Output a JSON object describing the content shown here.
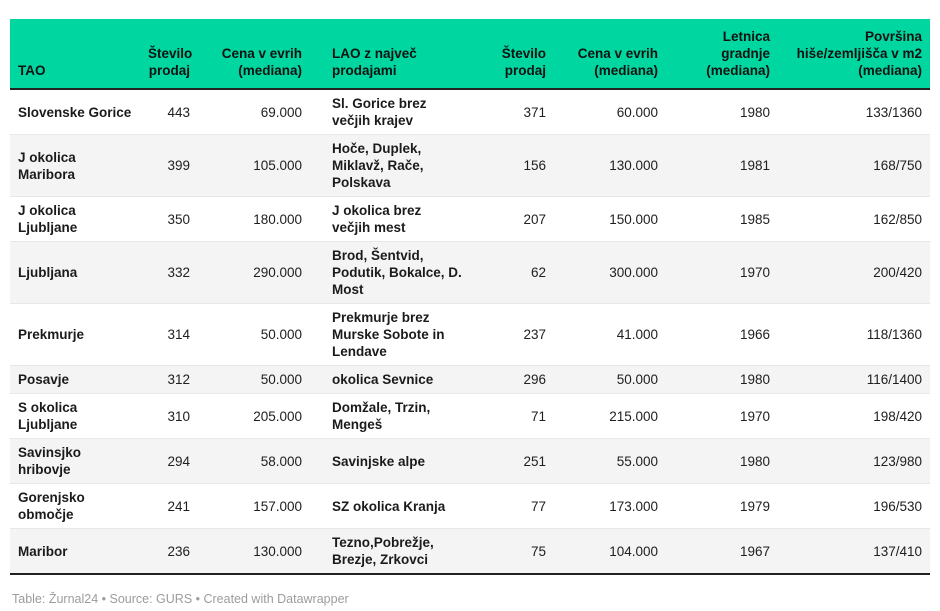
{
  "chart_data": {
    "type": "table",
    "title": "",
    "columns": [
      "TAO",
      "Število prodaj",
      "Cena v evrih (mediana)",
      "LAO z največ prodajami",
      "Število prodaj",
      "Cena v evrih (mediana)",
      "Letnica gradnje (mediana)",
      "Površina hiše/zemljišča v m2 (mediana)"
    ],
    "column_align": [
      "left",
      "right",
      "right",
      "left",
      "right",
      "right",
      "right",
      "right"
    ],
    "bold_columns": [
      0,
      3
    ],
    "rows": [
      [
        "Slovenske Gorice",
        "443",
        "69.000",
        "Sl. Gorice brez večjih krajev",
        "371",
        "60.000",
        "1980",
        "133/1360"
      ],
      [
        "J okolica Maribora",
        "399",
        "105.000",
        "Hoče, Duplek, Miklavž, Rače, Polskava",
        "156",
        "130.000",
        "1981",
        "168/750"
      ],
      [
        "J okolica Ljubljane",
        "350",
        "180.000",
        "J okolica brez večjih mest",
        "207",
        "150.000",
        "1985",
        "162/850"
      ],
      [
        "Ljubljana",
        "332",
        "290.000",
        "Brod, Šentvid, Podutik, Bokalce, D. Most",
        "62",
        "300.000",
        "1970",
        "200/420"
      ],
      [
        "Prekmurje",
        "314",
        "50.000",
        "Prekmurje brez Murske Sobote in Lendave",
        "237",
        "41.000",
        "1966",
        "118/1360"
      ],
      [
        "Posavje",
        "312",
        "50.000",
        "okolica Sevnice",
        "296",
        "50.000",
        "1980",
        "116/1400"
      ],
      [
        "S okolica Ljubljane",
        "310",
        "205.000",
        "Domžale, Trzin, Mengeš",
        "71",
        "215.000",
        "1970",
        "198/420"
      ],
      [
        "Savinsjko hribovje",
        "294",
        "58.000",
        "Savinjske alpe",
        "251",
        "55.000",
        "1980",
        "123/980"
      ],
      [
        "Gorenjsko območje",
        "241",
        "157.000",
        "SZ okolica Kranja",
        "77",
        "173.000",
        "1979",
        "196/530"
      ],
      [
        "Maribor",
        "236",
        "130.000",
        "Tezno,Pobrežje, Brezje, Zrkovci",
        "75",
        "104.000",
        "1967",
        "137/410"
      ]
    ],
    "layout_hints": {
      "zebra_striping": true,
      "header_vertical_align": "bottom",
      "numeric_columns_right_aligned": true
    }
  },
  "colors": {
    "header_bg": "#00d7a0",
    "header_text": "#111111",
    "alt_row_bg": "#f4f4f4",
    "dark_border": "#222222",
    "footer_text": "#9c9c9c"
  },
  "footer": {
    "text": "Table: Žurnal24 • Source: GURS • Created with Datawrapper"
  }
}
